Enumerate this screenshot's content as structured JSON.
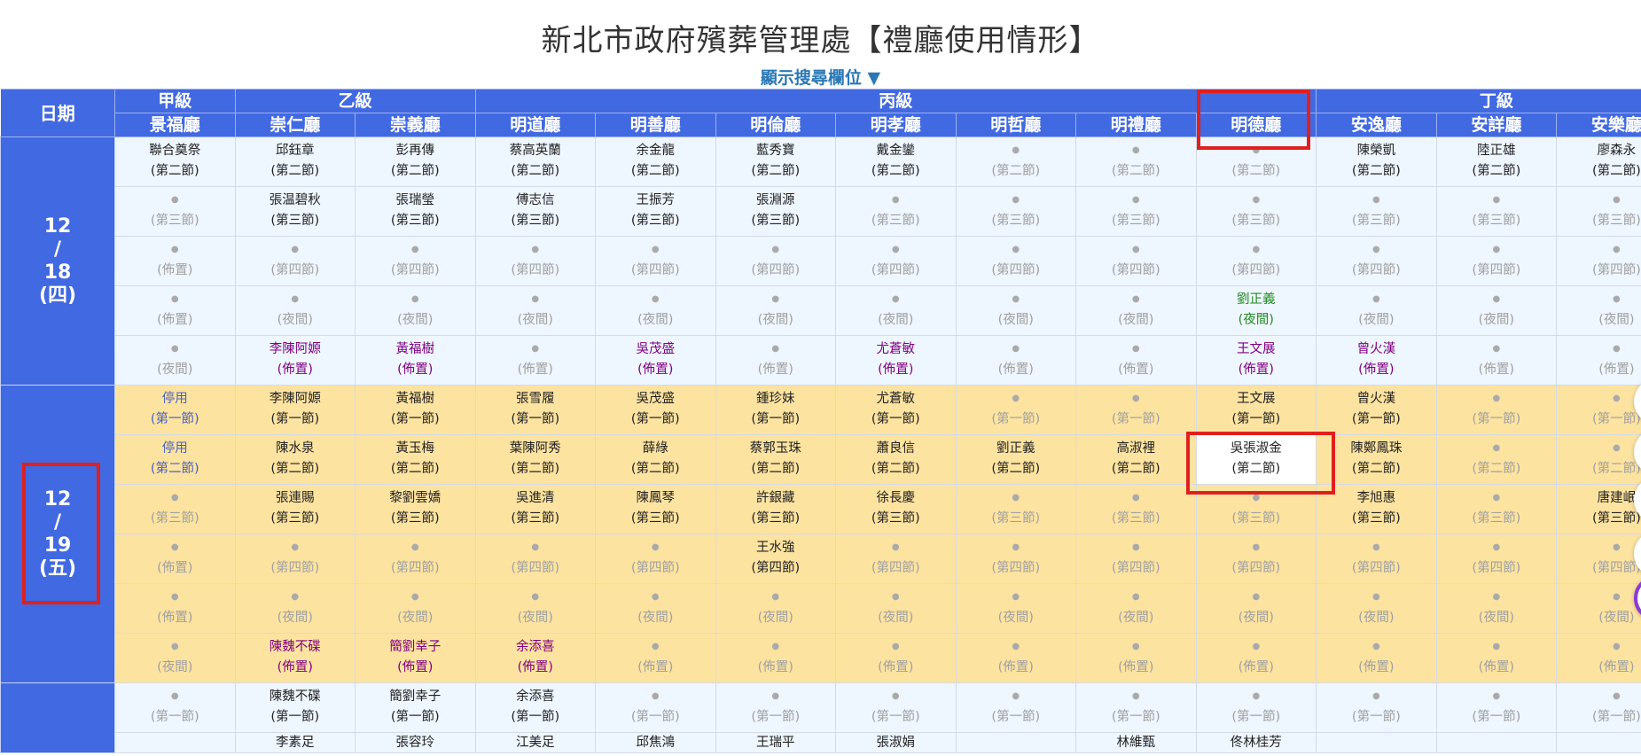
{
  "page": {
    "title": "新北市政府殯葬管理處【禮廳使用情形】",
    "toggle_search": "顯示搜尋欄位 ▼"
  },
  "colors": {
    "header": "#4169e1",
    "today_row": "#fde3a0",
    "normal_row": "#eef6ff",
    "setup": "#800080",
    "night": "#228b22",
    "disabled": "#4a5fc1",
    "highlight": "#e0201e"
  },
  "table": {
    "date_header": "日期",
    "groups": [
      {
        "label": "甲級",
        "span": 1
      },
      {
        "label": "乙級",
        "span": 2
      },
      {
        "label": "丙級",
        "span": 7
      },
      {
        "label": "丁級",
        "span": 3
      }
    ],
    "halls": [
      "景福廳",
      "崇仁廳",
      "崇義廳",
      "明道廳",
      "明善廳",
      "明倫廳",
      "明孝廳",
      "明哲廳",
      "明禮廳",
      "明德廳",
      "安逸廳",
      "安詳廳",
      "安樂廳"
    ],
    "highlighted_hall": "明德廳",
    "days": [
      {
        "date_lines": [
          "12",
          "/",
          "18",
          "(四)"
        ],
        "rows": [
          [
            [
              "聯合奠祭",
              "(第二節)",
              "booked"
            ],
            [
              "邱鈺章",
              "(第二節)",
              "booked"
            ],
            [
              "彭再傳",
              "(第二節)",
              "booked"
            ],
            [
              "蔡高英蘭",
              "(第二節)",
              "booked"
            ],
            [
              "余金龍",
              "(第二節)",
              "booked"
            ],
            [
              "藍秀寶",
              "(第二節)",
              "booked"
            ],
            [
              "戴金鑾",
              "(第二節)",
              "booked"
            ],
            [
              "●",
              "(第二節)",
              "empty"
            ],
            [
              "●",
              "(第二節)",
              "empty"
            ],
            [
              "●",
              "(第二節)",
              "empty"
            ],
            [
              "陳榮凱",
              "(第二節)",
              "booked"
            ],
            [
              "陸正雄",
              "(第二節)",
              "booked"
            ],
            [
              "廖森永",
              "(第二節)",
              "booked"
            ]
          ],
          [
            [
              "●",
              "(第三節)",
              "empty"
            ],
            [
              "張温碧秋",
              "(第三節)",
              "booked"
            ],
            [
              "張瑞瑩",
              "(第三節)",
              "booked"
            ],
            [
              "傅志信",
              "(第三節)",
              "booked"
            ],
            [
              "王振芳",
              "(第三節)",
              "booked"
            ],
            [
              "張淵源",
              "(第三節)",
              "booked"
            ],
            [
              "●",
              "(第三節)",
              "empty"
            ],
            [
              "●",
              "(第三節)",
              "empty"
            ],
            [
              "●",
              "(第三節)",
              "empty"
            ],
            [
              "●",
              "(第三節)",
              "empty"
            ],
            [
              "●",
              "(第三節)",
              "empty"
            ],
            [
              "●",
              "(第三節)",
              "empty"
            ],
            [
              "●",
              "(第三節)",
              "empty"
            ]
          ],
          [
            [
              "●",
              "(佈置)",
              "empty"
            ],
            [
              "●",
              "(第四節)",
              "empty"
            ],
            [
              "●",
              "(第四節)",
              "empty"
            ],
            [
              "●",
              "(第四節)",
              "empty"
            ],
            [
              "●",
              "(第四節)",
              "empty"
            ],
            [
              "●",
              "(第四節)",
              "empty"
            ],
            [
              "●",
              "(第四節)",
              "empty"
            ],
            [
              "●",
              "(第四節)",
              "empty"
            ],
            [
              "●",
              "(第四節)",
              "empty"
            ],
            [
              "●",
              "(第四節)",
              "empty"
            ],
            [
              "●",
              "(第四節)",
              "empty"
            ],
            [
              "●",
              "(第四節)",
              "empty"
            ],
            [
              "●",
              "(第四節)",
              "empty"
            ]
          ],
          [
            [
              "●",
              "(佈置)",
              "empty"
            ],
            [
              "●",
              "(夜間)",
              "empty"
            ],
            [
              "●",
              "(夜間)",
              "empty"
            ],
            [
              "●",
              "(夜間)",
              "empty"
            ],
            [
              "●",
              "(夜間)",
              "empty"
            ],
            [
              "●",
              "(夜間)",
              "empty"
            ],
            [
              "●",
              "(夜間)",
              "empty"
            ],
            [
              "●",
              "(夜間)",
              "empty"
            ],
            [
              "●",
              "(夜間)",
              "empty"
            ],
            [
              "劉正義",
              "(夜間)",
              "night"
            ],
            [
              "●",
              "(夜間)",
              "empty"
            ],
            [
              "●",
              "(夜間)",
              "empty"
            ],
            [
              "●",
              "(夜間)",
              "empty"
            ]
          ],
          [
            [
              "●",
              "(夜間)",
              "empty"
            ],
            [
              "李陳阿嫄",
              "(佈置)",
              "setup"
            ],
            [
              "黃福樹",
              "(佈置)",
              "setup"
            ],
            [
              "●",
              "(佈置)",
              "empty"
            ],
            [
              "吳茂盛",
              "(佈置)",
              "setup"
            ],
            [
              "●",
              "(佈置)",
              "empty"
            ],
            [
              "尤蒼敏",
              "(佈置)",
              "setup"
            ],
            [
              "●",
              "(佈置)",
              "empty"
            ],
            [
              "●",
              "(佈置)",
              "empty"
            ],
            [
              "王文展",
              "(佈置)",
              "setup"
            ],
            [
              "曾火漢",
              "(佈置)",
              "setup"
            ],
            [
              "●",
              "(佈置)",
              "empty"
            ],
            [
              "●",
              "(佈置)",
              "empty"
            ]
          ]
        ]
      },
      {
        "date_lines": [
          "12",
          "/",
          "19",
          "(五)"
        ],
        "rows": [
          [
            [
              "停用",
              "(第一節)",
              "disabled"
            ],
            [
              "李陳阿嫄",
              "(第一節)",
              "booked"
            ],
            [
              "黃福樹",
              "(第一節)",
              "booked"
            ],
            [
              "張雪履",
              "(第一節)",
              "booked"
            ],
            [
              "吳茂盛",
              "(第一節)",
              "booked"
            ],
            [
              "鍾珍妹",
              "(第一節)",
              "booked"
            ],
            [
              "尤蒼敏",
              "(第一節)",
              "booked"
            ],
            [
              "●",
              "(第一節)",
              "empty"
            ],
            [
              "●",
              "(第一節)",
              "empty"
            ],
            [
              "王文展",
              "(第一節)",
              "booked"
            ],
            [
              "曾火漢",
              "(第一節)",
              "booked"
            ],
            [
              "●",
              "(第一節)",
              "empty"
            ],
            [
              "●",
              "(第一節)",
              "empty"
            ]
          ],
          [
            [
              "停用",
              "(第二節)",
              "disabled"
            ],
            [
              "陳水泉",
              "(第二節)",
              "booked"
            ],
            [
              "黃玉梅",
              "(第二節)",
              "booked"
            ],
            [
              "葉陳阿秀",
              "(第二節)",
              "booked"
            ],
            [
              "薛綠",
              "(第二節)",
              "booked"
            ],
            [
              "蔡郭玉珠",
              "(第二節)",
              "booked"
            ],
            [
              "蕭良信",
              "(第二節)",
              "booked"
            ],
            [
              "劉正義",
              "(第二節)",
              "booked"
            ],
            [
              "高淑裡",
              "(第二節)",
              "booked"
            ],
            [
              "吳張淑金",
              "(第二節)",
              "booked",
              "hl"
            ],
            [
              "陳鄭鳳珠",
              "(第二節)",
              "booked"
            ],
            [
              "●",
              "(第二節)",
              "empty"
            ],
            [
              "●",
              "(第二節)",
              "empty"
            ]
          ],
          [
            [
              "●",
              "(第三節)",
              "empty"
            ],
            [
              "張連賜",
              "(第三節)",
              "booked"
            ],
            [
              "黎劉雲嬌",
              "(第三節)",
              "booked"
            ],
            [
              "吳進清",
              "(第三節)",
              "booked"
            ],
            [
              "陳鳳琴",
              "(第三節)",
              "booked"
            ],
            [
              "許銀藏",
              "(第三節)",
              "booked"
            ],
            [
              "徐長慶",
              "(第三節)",
              "booked"
            ],
            [
              "●",
              "(第三節)",
              "empty"
            ],
            [
              "●",
              "(第三節)",
              "empty"
            ],
            [
              "●",
              "(第三節)",
              "empty"
            ],
            [
              "李旭惠",
              "(第三節)",
              "booked"
            ],
            [
              "●",
              "(第三節)",
              "empty"
            ],
            [
              "唐建岷",
              "(第三節)",
              "booked"
            ]
          ],
          [
            [
              "●",
              "(佈置)",
              "empty"
            ],
            [
              "●",
              "(第四節)",
              "empty"
            ],
            [
              "●",
              "(第四節)",
              "empty"
            ],
            [
              "●",
              "(第四節)",
              "empty"
            ],
            [
              "●",
              "(第四節)",
              "empty"
            ],
            [
              "王水強",
              "(第四節)",
              "booked"
            ],
            [
              "●",
              "(第四節)",
              "empty"
            ],
            [
              "●",
              "(第四節)",
              "empty"
            ],
            [
              "●",
              "(第四節)",
              "empty"
            ],
            [
              "●",
              "(第四節)",
              "empty"
            ],
            [
              "●",
              "(第四節)",
              "empty"
            ],
            [
              "●",
              "(第四節)",
              "empty"
            ],
            [
              "●",
              "(第四節)",
              "empty"
            ]
          ],
          [
            [
              "●",
              "(佈置)",
              "empty"
            ],
            [
              "●",
              "(夜間)",
              "empty"
            ],
            [
              "●",
              "(夜間)",
              "empty"
            ],
            [
              "●",
              "(夜間)",
              "empty"
            ],
            [
              "●",
              "(夜間)",
              "empty"
            ],
            [
              "●",
              "(夜間)",
              "empty"
            ],
            [
              "●",
              "(夜間)",
              "empty"
            ],
            [
              "●",
              "(夜間)",
              "empty"
            ],
            [
              "●",
              "(夜間)",
              "empty"
            ],
            [
              "●",
              "(夜間)",
              "empty"
            ],
            [
              "●",
              "(夜間)",
              "empty"
            ],
            [
              "●",
              "(夜間)",
              "empty"
            ],
            [
              "●",
              "(夜間)",
              "empty"
            ]
          ],
          [
            [
              "●",
              "(夜間)",
              "empty"
            ],
            [
              "陳魏不碟",
              "(佈置)",
              "setup"
            ],
            [
              "簡劉幸子",
              "(佈置)",
              "setup"
            ],
            [
              "余添喜",
              "(佈置)",
              "setup"
            ],
            [
              "●",
              "(佈置)",
              "empty"
            ],
            [
              "●",
              "(佈置)",
              "empty"
            ],
            [
              "●",
              "(佈置)",
              "empty"
            ],
            [
              "●",
              "(佈置)",
              "empty"
            ],
            [
              "●",
              "(佈置)",
              "empty"
            ],
            [
              "●",
              "(佈置)",
              "empty"
            ],
            [
              "●",
              "(佈置)",
              "empty"
            ],
            [
              "●",
              "(佈置)",
              "empty"
            ],
            [
              "●",
              "(佈置)",
              "empty"
            ]
          ]
        ]
      },
      {
        "date_lines": [],
        "rows": [
          [
            [
              "●",
              "(第一節)",
              "empty"
            ],
            [
              "陳魏不碟",
              "(第一節)",
              "booked"
            ],
            [
              "簡劉幸子",
              "(第一節)",
              "booked"
            ],
            [
              "余添喜",
              "(第一節)",
              "booked"
            ],
            [
              "●",
              "(第一節)",
              "empty"
            ],
            [
              "●",
              "(第一節)",
              "empty"
            ],
            [
              "●",
              "(第一節)",
              "empty"
            ],
            [
              "●",
              "(第一節)",
              "empty"
            ],
            [
              "●",
              "(第一節)",
              "empty"
            ],
            [
              "●",
              "(第一節)",
              "empty"
            ],
            [
              "●",
              "(第一節)",
              "empty"
            ],
            [
              "●",
              "(第一節)",
              "empty"
            ],
            [
              "●",
              "(第一節)",
              "empty"
            ]
          ],
          [
            [
              "",
              "",
              "empty"
            ],
            [
              "李素足",
              "",
              "booked"
            ],
            [
              "張容玲",
              "",
              "booked"
            ],
            [
              "江美足",
              "",
              "booked"
            ],
            [
              "邱焦鴻",
              "",
              "booked"
            ],
            [
              "王瑞平",
              "",
              "booked"
            ],
            [
              "張淑娟",
              "",
              "booked"
            ],
            [
              "",
              "",
              "empty"
            ],
            [
              "林維甄",
              "",
              "booked"
            ],
            [
              "佟林桂芳",
              "",
              "booked"
            ],
            [
              "",
              "",
              "empty"
            ],
            [
              "",
              "",
              "empty"
            ],
            [
              "",
              "",
              "empty"
            ]
          ]
        ]
      }
    ]
  }
}
